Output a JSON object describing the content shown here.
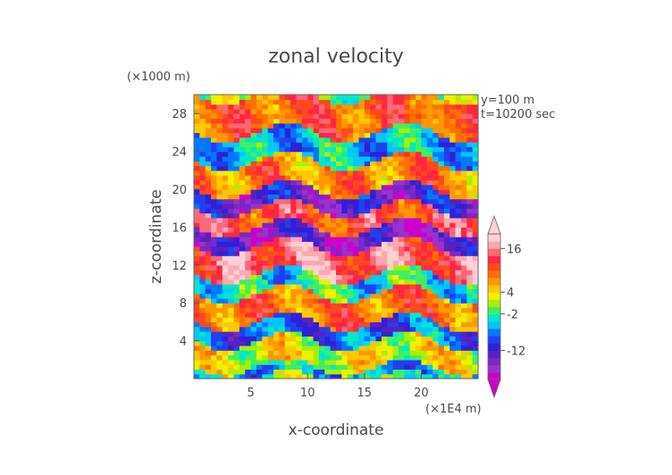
{
  "chart_data": {
    "type": "heatmap",
    "title": "zonal velocity",
    "xlabel": "x-coordinate",
    "ylabel": "z-coordinate",
    "x_unit": "(×1E4 m)",
    "y_unit": "(×1000 m)",
    "info_lines": [
      "y=100 m",
      "t=10200 sec"
    ],
    "xlim": [
      0,
      25
    ],
    "ylim": [
      0,
      30
    ],
    "x_ticks": [
      5,
      10,
      15,
      20
    ],
    "y_ticks": [
      4,
      8,
      12,
      16,
      20,
      24,
      28
    ],
    "colorbar": {
      "min": -20,
      "max": 20,
      "tick_labels": [
        16,
        4,
        -2,
        -12
      ],
      "colors": [
        "#cc00cc",
        "#9933cc",
        "#7a28c8",
        "#5a20c0",
        "#3020d8",
        "#2040f0",
        "#0078ff",
        "#00c8ff",
        "#00e8c8",
        "#40f060",
        "#a8f000",
        "#f0f000",
        "#ffc800",
        "#ff9800",
        "#ff7000",
        "#ff4820",
        "#ff2840",
        "#ff6878",
        "#ffa8b0",
        "#ffd0d4"
      ]
    },
    "grid": false,
    "legend": "colorbar right",
    "bands": [
      {
        "z": [
          0,
          1.2
        ],
        "v": -6
      },
      {
        "z": [
          1.2,
          4
        ],
        "v": 3
      },
      {
        "z": [
          4,
          6
        ],
        "v": -8
      },
      {
        "z": [
          6,
          9
        ],
        "v": 9
      },
      {
        "z": [
          9,
          11
        ],
        "v": -3
      },
      {
        "z": [
          11,
          14
        ],
        "v": 15
      },
      {
        "z": [
          14,
          16
        ],
        "v": -15
      },
      {
        "z": [
          16,
          18
        ],
        "v": 12
      },
      {
        "z": [
          18,
          20
        ],
        "v": -13
      },
      {
        "z": [
          20,
          23
        ],
        "v": 8
      },
      {
        "z": [
          23,
          26
        ],
        "v": -5
      },
      {
        "z": [
          26,
          30
        ],
        "v": 10
      }
    ]
  }
}
